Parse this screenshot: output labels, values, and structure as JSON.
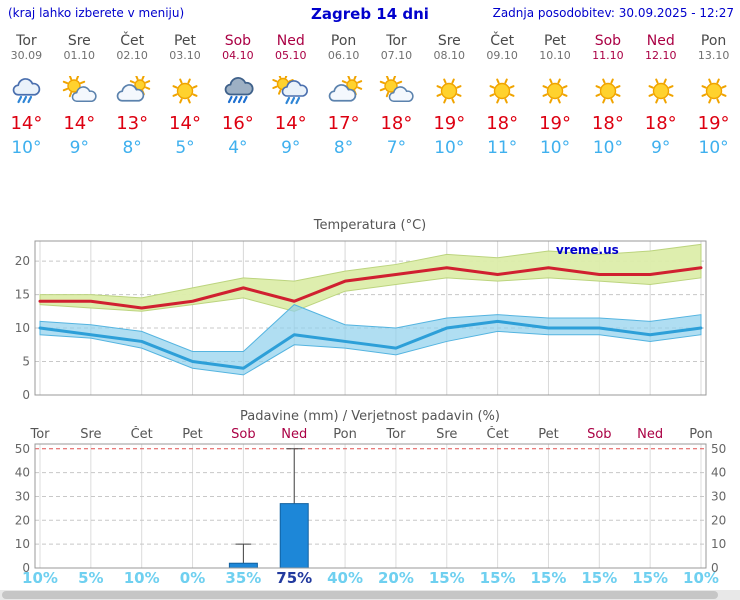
{
  "header": {
    "left_note": "(kraj lahko izberete v meniju)",
    "title": "Zagreb 14 dni",
    "updated_label": "Zadnja posodobitev: 30.09.2025 - 12:27"
  },
  "colors": {
    "link_blue": "#0000cc",
    "weekend_red": "#aa0044",
    "weekday_gray": "#4a4a4a",
    "high_red": "#dd0011",
    "low_blue": "#3fb0ee",
    "prob_cyan": "#6fd0f0",
    "prob_emph_blue": "#223a9e",
    "bar_blue": "#1d87d8",
    "max_line_red": "#d02030",
    "min_line_blue": "#2d9fd8",
    "max_band_green": "#dcedaa",
    "min_band_blue": "#8fd0ec"
  },
  "days": [
    {
      "name": "Tor",
      "date": "30.09",
      "weekend": false,
      "icon": "cloud-rain",
      "high": "14°",
      "low": "10°"
    },
    {
      "name": "Sre",
      "date": "01.10",
      "weekend": false,
      "icon": "sun-cloud",
      "high": "14°",
      "low": "9°"
    },
    {
      "name": "Čet",
      "date": "02.10",
      "weekend": false,
      "icon": "cloud-sun",
      "high": "13°",
      "low": "8°"
    },
    {
      "name": "Pet",
      "date": "03.10",
      "weekend": false,
      "icon": "sun",
      "high": "14°",
      "low": "5°"
    },
    {
      "name": "Sob",
      "date": "04.10",
      "weekend": true,
      "icon": "rain-heavy",
      "high": "16°",
      "low": "4°"
    },
    {
      "name": "Ned",
      "date": "05.10",
      "weekend": true,
      "icon": "sun-cloud-rain",
      "high": "14°",
      "low": "9°"
    },
    {
      "name": "Pon",
      "date": "06.10",
      "weekend": false,
      "icon": "cloud-sun",
      "high": "17°",
      "low": "8°"
    },
    {
      "name": "Tor",
      "date": "07.10",
      "weekend": false,
      "icon": "sun-cloud",
      "high": "18°",
      "low": "7°"
    },
    {
      "name": "Sre",
      "date": "08.10",
      "weekend": false,
      "icon": "sun",
      "high": "19°",
      "low": "10°"
    },
    {
      "name": "Čet",
      "date": "09.10",
      "weekend": false,
      "icon": "sun",
      "high": "18°",
      "low": "11°"
    },
    {
      "name": "Pet",
      "date": "10.10",
      "weekend": false,
      "icon": "sun",
      "high": "19°",
      "low": "10°"
    },
    {
      "name": "Sob",
      "date": "11.10",
      "weekend": true,
      "icon": "sun",
      "high": "18°",
      "low": "10°"
    },
    {
      "name": "Ned",
      "date": "12.10",
      "weekend": true,
      "icon": "sun",
      "high": "18°",
      "low": "9°"
    },
    {
      "name": "Pon",
      "date": "13.10",
      "weekend": false,
      "icon": "sun",
      "high": "19°",
      "low": "10°"
    }
  ],
  "chart_data": [
    {
      "type": "line",
      "title": "Temperatura (°C)",
      "watermark": "vreme.us",
      "x_labels": [
        "Tor",
        "Sre",
        "Čet",
        "Pet",
        "Sob",
        "Ned",
        "Pon",
        "Tor",
        "Sre",
        "Čet",
        "Pet",
        "Sob",
        "Ned",
        "Pon"
      ],
      "ylabel": "°C",
      "ylim": [
        0,
        23
      ],
      "yticks": [
        0,
        5,
        10,
        15,
        20
      ],
      "grid": true,
      "series": [
        {
          "name": "max-temp",
          "values": [
            14,
            14,
            13,
            14,
            16,
            14,
            17,
            18,
            19,
            18,
            19,
            18,
            18,
            19
          ]
        },
        {
          "name": "min-temp",
          "values": [
            10,
            9,
            8,
            5,
            4,
            9,
            8,
            7,
            10,
            11,
            10,
            10,
            9,
            10
          ]
        },
        {
          "name": "max-band-upper",
          "values": [
            15,
            15,
            14.5,
            16,
            17.5,
            17,
            18.5,
            19.5,
            21,
            20.5,
            21.5,
            21,
            21.5,
            22.5
          ]
        },
        {
          "name": "max-band-lower",
          "values": [
            13.5,
            13,
            12.5,
            13.5,
            14.5,
            12.5,
            15.5,
            16.5,
            17.5,
            17,
            17.5,
            17,
            16.5,
            17.5
          ]
        },
        {
          "name": "min-band-upper",
          "values": [
            11,
            10.5,
            9.5,
            6.5,
            6.5,
            13.5,
            10.5,
            10,
            11.5,
            12,
            11.5,
            11.5,
            11,
            12
          ]
        },
        {
          "name": "min-band-lower",
          "values": [
            9,
            8.5,
            7,
            4,
            3,
            7.5,
            7,
            6,
            8,
            9.5,
            9,
            9,
            8,
            9
          ]
        }
      ]
    },
    {
      "type": "bar",
      "title": "Padavine (mm) / Verjetnost padavin (%)",
      "x_labels": [
        "Tor",
        "Sre",
        "Čet",
        "Pet",
        "Sob",
        "Ned",
        "Pon",
        "Tor",
        "Sre",
        "Čet",
        "Pet",
        "Sob",
        "Ned",
        "Pon"
      ],
      "ylabel": "mm",
      "ylim": [
        0,
        52
      ],
      "yticks": [
        0,
        10,
        20,
        30,
        40,
        50
      ],
      "grid": true,
      "bars_mm": [
        0,
        0,
        0,
        0,
        2,
        27,
        0,
        0,
        0,
        0,
        0,
        0,
        0,
        0
      ],
      "whisker_max_mm": [
        0,
        0,
        0,
        0,
        10,
        50,
        0,
        0,
        0,
        0,
        0,
        0,
        0,
        0
      ],
      "probabilities": [
        "10%",
        "5%",
        "10%",
        "0%",
        "35%",
        "75%",
        "40%",
        "20%",
        "15%",
        "15%",
        "15%",
        "15%",
        "15%",
        "10%"
      ],
      "emphasized_index": 5
    }
  ]
}
